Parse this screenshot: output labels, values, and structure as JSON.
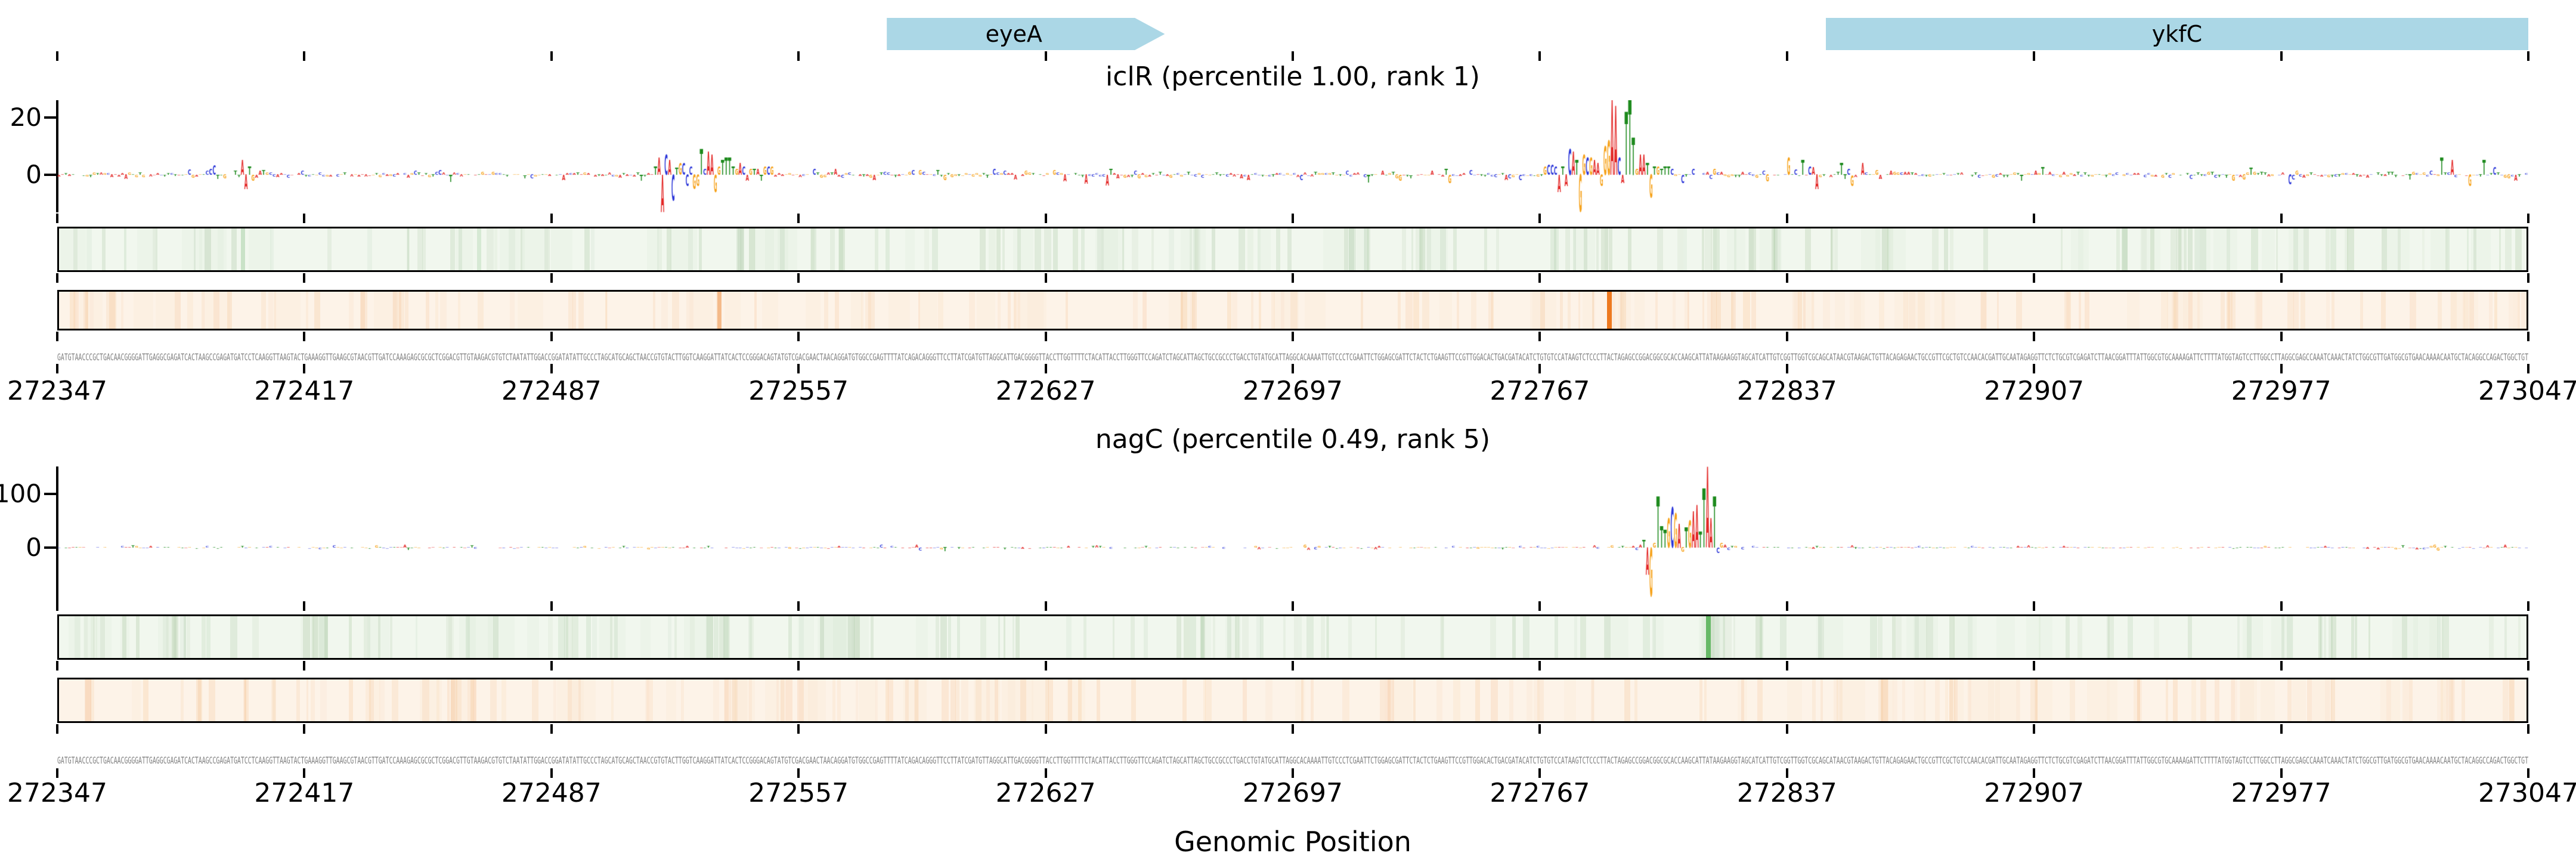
{
  "figure": {
    "background": "#ffffff",
    "xlabel": "Genomic Position"
  },
  "chart_data": {
    "type": "dna-attribution-logo",
    "description": "Two stacked DNA attribution-score sequence-logo tracks with gene annotations, per-position heatmap strips and the genomic sequence",
    "x_axis": {
      "label": "Genomic Position",
      "start": 272347,
      "end": 273047,
      "tick_step": 70,
      "tick_labels": [
        "272347",
        "272417",
        "272487",
        "272557",
        "272627",
        "272697",
        "272767",
        "272837",
        "272907",
        "272977",
        "273047"
      ]
    },
    "genes": [
      {
        "name": "eyeA",
        "start": 272582,
        "end": 272654,
        "shape": "arrow-right",
        "clipped": false,
        "color": "#abd7e6"
      },
      {
        "name": "ykfC",
        "start": 272848,
        "end": 273047,
        "shape": "rect",
        "clipped": true,
        "color": "#abd7e6"
      }
    ],
    "letter_colors": {
      "A": "#e32726",
      "C": "#2a35d8",
      "G": "#f6a21b",
      "T": "#1d8a1d"
    },
    "panels": [
      {
        "id": "iclR",
        "title": "iclR (percentile 1.00, rank 1)",
        "tf_name": "iclR",
        "percentile": "1.00",
        "rank": "1",
        "y_ticks": [
          {
            "label": "20",
            "value": 20
          },
          {
            "label": "0",
            "value": 0
          }
        ],
        "y_range": [
          -13,
          26
        ],
        "noise_amp": 1.0,
        "noise_seed": 11,
        "bumps": [
          [
            272355,
            272370,
            1.4
          ],
          [
            272390,
            272412,
            2.4
          ],
          [
            272445,
            272465,
            1.5
          ],
          [
            272560,
            272600,
            1.6
          ],
          [
            272628,
            272665,
            1.9
          ],
          [
            272700,
            272725,
            1.5
          ],
          [
            272735,
            272760,
            1.4
          ],
          [
            272806,
            272872,
            2.4
          ],
          [
            272890,
            272915,
            1.5
          ],
          [
            272950,
            272992,
            1.7
          ],
          [
            273005,
            273042,
            2.0
          ]
        ],
        "motif": [
          [
            272399,
            "A",
            5
          ],
          [
            272400,
            "A",
            -5
          ],
          [
            272401,
            "T",
            3
          ],
          [
            272516,
            "T",
            3
          ],
          [
            272517,
            "A",
            6
          ],
          [
            272518,
            "A",
            -13
          ],
          [
            272519,
            "C",
            7
          ],
          [
            272520,
            "A",
            5
          ],
          [
            272521,
            "C",
            -9
          ],
          [
            272522,
            "T",
            2.5
          ],
          [
            272523,
            "G",
            4
          ],
          [
            272524,
            "C",
            4
          ],
          [
            272525,
            "C",
            -4
          ],
          [
            272526,
            "C",
            3
          ],
          [
            272527,
            "G",
            -5
          ],
          [
            272528,
            "G",
            -4
          ],
          [
            272529,
            "T",
            9
          ],
          [
            272530,
            "C",
            2
          ],
          [
            272531,
            "A",
            8
          ],
          [
            272532,
            "A",
            7
          ],
          [
            272533,
            "G",
            -6
          ],
          [
            272534,
            "G",
            3
          ],
          [
            272535,
            "T",
            5
          ],
          [
            272536,
            "T",
            6
          ],
          [
            272537,
            "T",
            6
          ],
          [
            272538,
            "T",
            3
          ],
          [
            272539,
            "G",
            2
          ],
          [
            272540,
            "A",
            4
          ],
          [
            272541,
            "C",
            3
          ],
          [
            272542,
            "A",
            -2
          ],
          [
            272543,
            "G",
            2
          ],
          [
            272544,
            "T",
            2
          ],
          [
            272545,
            "A",
            2
          ],
          [
            272546,
            "T",
            -2
          ],
          [
            272547,
            "G",
            3
          ],
          [
            272548,
            "C",
            3
          ],
          [
            272549,
            "G",
            3
          ],
          [
            272768,
            "G",
            3
          ],
          [
            272769,
            "C",
            3.5
          ],
          [
            272770,
            "C",
            3.5
          ],
          [
            272771,
            "C",
            3
          ],
          [
            272772,
            "A",
            -6
          ],
          [
            272773,
            "T",
            3
          ],
          [
            272774,
            "A",
            -4
          ],
          [
            272775,
            "C",
            9
          ],
          [
            272776,
            "A",
            8
          ],
          [
            272777,
            "T",
            5
          ],
          [
            272778,
            "G",
            -14
          ],
          [
            272779,
            "G",
            7
          ],
          [
            272780,
            "C",
            6
          ],
          [
            272781,
            "G",
            6
          ],
          [
            272782,
            "A",
            5
          ],
          [
            272783,
            "A",
            4
          ],
          [
            272784,
            "G",
            -4
          ],
          [
            272785,
            "G",
            10
          ],
          [
            272786,
            "G",
            12
          ],
          [
            272787,
            "A",
            27
          ],
          [
            272788,
            "A",
            24
          ],
          [
            272789,
            "C",
            6
          ],
          [
            272790,
            "A",
            -3
          ],
          [
            272791,
            "T",
            22
          ],
          [
            272792,
            "T",
            26
          ],
          [
            272793,
            "T",
            13
          ],
          [
            272794,
            "G",
            2
          ],
          [
            272795,
            "A",
            7
          ],
          [
            272796,
            "A",
            7
          ],
          [
            272797,
            "T",
            4
          ],
          [
            272798,
            "G",
            -8
          ],
          [
            272799,
            "T",
            3
          ],
          [
            272800,
            "G",
            3
          ],
          [
            272801,
            "T",
            2
          ],
          [
            272802,
            "T",
            3
          ],
          [
            272803,
            "T",
            3
          ],
          [
            272804,
            "C",
            2
          ],
          [
            272837,
            "G",
            6
          ],
          [
            272841,
            "T",
            5
          ],
          [
            272845,
            "A",
            -5
          ],
          [
            272852,
            "T",
            4
          ],
          [
            272858,
            "A",
            4
          ],
          [
            273022,
            "T",
            6
          ],
          [
            273025,
            "A",
            5
          ],
          [
            273030,
            "G",
            -4
          ],
          [
            273034,
            "T",
            5
          ]
        ],
        "green_strip": {
          "bg": "#f1f7ee",
          "band_rgb": "110,160,100",
          "seed": 21,
          "lines": [
            {
              "pos": 272399,
              "color": "110,180,110",
              "alpha": 0.3,
              "width": 7
            },
            {
              "pos": 272466,
              "color": "110,180,110",
              "alpha": 0.2,
              "width": 7
            }
          ]
        },
        "orange_strip": {
          "bg": "#fdf3e8",
          "band_rgb": "240,165,95",
          "seed": 22,
          "lines": [
            {
              "pos": 272534,
              "color": "238,140,60",
              "alpha": 0.5,
              "width": 7
            },
            {
              "pos": 272786,
              "color": "237,121,32",
              "alpha": 1.0,
              "width": 8
            }
          ]
        }
      },
      {
        "id": "nagC",
        "title": "nagC (percentile 0.49, rank 5)",
        "tf_name": "nagC",
        "percentile": "0.49",
        "rank": "5",
        "y_ticks": [
          {
            "label": "100",
            "value": 100
          },
          {
            "label": "0",
            "value": 0
          }
        ],
        "y_range": [
          -100,
          151
        ],
        "noise_amp": 1.8,
        "noise_seed": 33,
        "bumps": [
          [
            272420,
            272450,
            1.6
          ],
          [
            272510,
            272530,
            1.4
          ],
          [
            272555,
            272605,
            1.7
          ],
          [
            272640,
            272660,
            1.3
          ],
          [
            272690,
            272720,
            1.6
          ],
          [
            272755,
            272775,
            1.3
          ],
          [
            272830,
            272870,
            1.5
          ],
          [
            272950,
            272980,
            1.2
          ],
          [
            273000,
            273045,
            1.7
          ]
        ],
        "motif": [
          [
            272445,
            "A",
            5
          ],
          [
            272446,
            "T",
            -4
          ],
          [
            272590,
            "A",
            6
          ],
          [
            272591,
            "C",
            -5
          ],
          [
            272700,
            "G",
            5
          ],
          [
            272701,
            "A",
            -4
          ],
          [
            272793,
            "A",
            3
          ],
          [
            272794,
            "C",
            -4
          ],
          [
            272795,
            "A",
            5
          ],
          [
            272796,
            "T",
            15
          ],
          [
            272797,
            "A",
            -50
          ],
          [
            272798,
            "G",
            -90
          ],
          [
            272799,
            "G",
            8
          ],
          [
            272800,
            "T",
            95
          ],
          [
            272801,
            "T",
            40
          ],
          [
            272802,
            "T",
            33
          ],
          [
            272803,
            "G",
            55
          ],
          [
            272804,
            "C",
            75
          ],
          [
            272805,
            "G",
            63
          ],
          [
            272806,
            "A",
            45
          ],
          [
            272807,
            "G",
            -8
          ],
          [
            272808,
            "T",
            38
          ],
          [
            272809,
            "G",
            50
          ],
          [
            272810,
            "A",
            68
          ],
          [
            272811,
            "A",
            80
          ],
          [
            272812,
            "T",
            30
          ],
          [
            272813,
            "T",
            110
          ],
          [
            272814,
            "A",
            150
          ],
          [
            272815,
            "A",
            55
          ],
          [
            272816,
            "T",
            95
          ],
          [
            272817,
            "C",
            -10
          ],
          [
            272818,
            "G",
            8
          ],
          [
            272819,
            "A",
            6
          ],
          [
            272820,
            "C",
            -4
          ],
          [
            272821,
            "T",
            3
          ],
          [
            272822,
            "G",
            3
          ],
          [
            273020,
            "G",
            6
          ],
          [
            273021,
            "G",
            -5
          ],
          [
            273035,
            "A",
            4
          ]
        ],
        "green_strip": {
          "bg": "#f1f7ee",
          "band_rgb": "110,160,100",
          "seed": 41,
          "lines": [
            {
              "pos": 272814,
              "color": "103,185,103",
              "alpha": 1.0,
              "width": 8
            }
          ]
        },
        "orange_strip": {
          "bg": "#fdf3e8",
          "band_rgb": "240,165,95",
          "seed": 42,
          "lines": []
        }
      }
    ],
    "sequence": {
      "prefix": "GATGTAACCCGCTGACAACGGGGATTGAGGCGAGATCACTAAGCCGAGATGATCCTCAAGGTTAAGTACTGAAAGGTTGAAG",
      "suffix": "GGCGTTGATGGCGTGAACAAAACAATGCTACAGGCCAGACTGGCTGT",
      "length": 700,
      "seed": 7,
      "color": "#7f7f7f"
    }
  }
}
